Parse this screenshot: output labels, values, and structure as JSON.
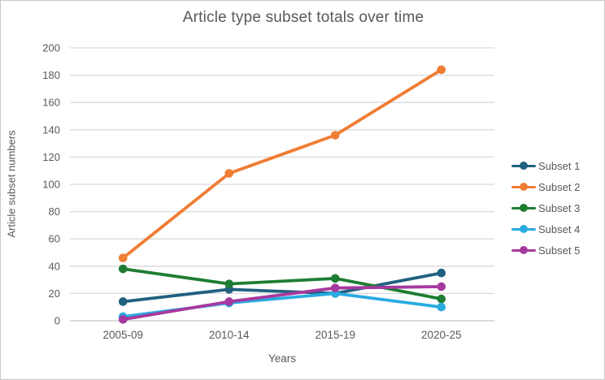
{
  "chart_data": {
    "type": "line",
    "title": "Article type subset totals over time",
    "xlabel": "Years",
    "ylabel": "Article subset numbers",
    "categories": [
      "2005-09",
      "2010-14",
      "2015-19",
      "2020-25"
    ],
    "series": [
      {
        "name": "Subset 1",
        "color": "#20617f",
        "values": [
          14,
          23,
          20,
          35
        ]
      },
      {
        "name": "Subset 2",
        "color": "#ef7d33",
        "values": [
          46,
          108,
          136,
          184
        ]
      },
      {
        "name": "Subset 3",
        "color": "#1e7d32",
        "values": [
          38,
          27,
          31,
          16
        ]
      },
      {
        "name": "Subset 4",
        "color": "#29abe2",
        "values": [
          3,
          13,
          20,
          10
        ]
      },
      {
        "name": "Subset 5",
        "color": "#a6399f",
        "values": [
          1,
          14,
          24,
          25
        ]
      }
    ],
    "ylim": [
      0,
      200
    ],
    "ytick_step": 20,
    "yticks": [
      0,
      20,
      40,
      60,
      80,
      100,
      120,
      140,
      160,
      180,
      200
    ],
    "grid": "horizontal",
    "legend_position": "right"
  },
  "styles": {
    "text_color": "#595959",
    "grid_color": "#d9d9d9",
    "axis_line_color": "#c6c6c6",
    "background": "#ffffff",
    "border_color": "#c9c9c9"
  }
}
